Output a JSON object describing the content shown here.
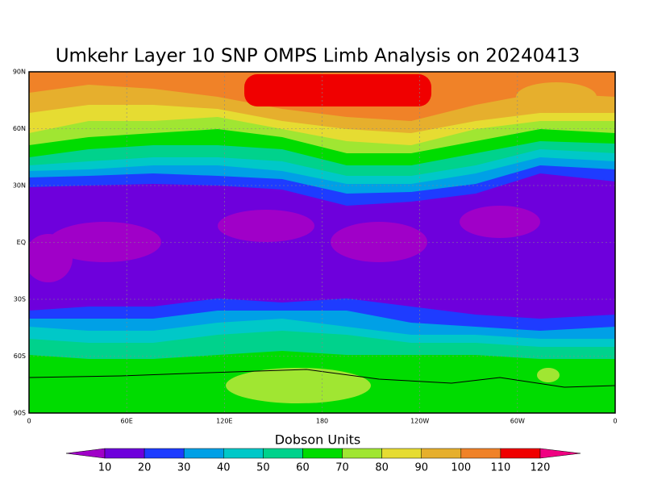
{
  "title": "Umkehr Layer 10 SNP OMPS Limb Analysis on 20240413",
  "map": {
    "x_axis_labels": [
      "0",
      "60E",
      "120E",
      "180",
      "120W",
      "60W",
      "0"
    ],
    "y_axis_labels": [
      "90N",
      "60N",
      "30N",
      "EQ",
      "30S",
      "60S",
      "90S"
    ]
  },
  "colorbar": {
    "title": "Dobson Units",
    "levels": [
      10,
      20,
      30,
      40,
      50,
      60,
      70,
      80,
      90,
      100,
      110,
      120
    ],
    "colors": [
      "#a000c8",
      "#6e00dc",
      "#1e3cff",
      "#00a0e6",
      "#00c8c8",
      "#00d28c",
      "#00dc00",
      "#a0e632",
      "#e6dc32",
      "#e6af2d",
      "#f08228",
      "#f00000",
      "#f00082"
    ]
  }
}
